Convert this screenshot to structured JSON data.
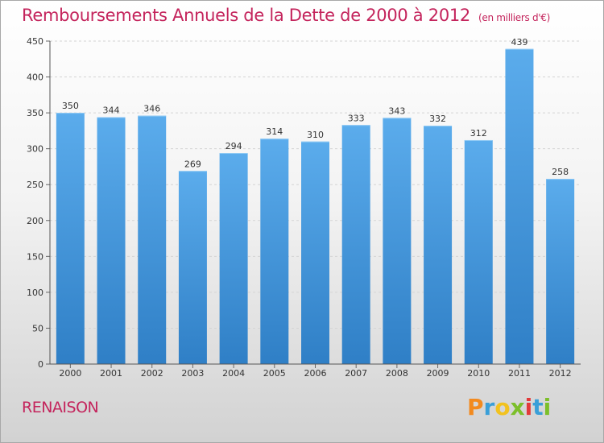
{
  "chart_data": {
    "type": "bar",
    "title": "Remboursements Annuels de la Dette de 2000 à 2012",
    "unit_note": "(en milliers d'€)",
    "categories": [
      "2000",
      "2001",
      "2002",
      "2003",
      "2004",
      "2005",
      "2006",
      "2007",
      "2008",
      "2009",
      "2010",
      "2011",
      "2012"
    ],
    "values": [
      350,
      344,
      346,
      269,
      294,
      314,
      310,
      333,
      343,
      332,
      312,
      439,
      258
    ],
    "ylim": [
      0,
      450
    ],
    "yticks": [
      0,
      50,
      100,
      150,
      200,
      250,
      300,
      350,
      400,
      450
    ],
    "xlabel": "",
    "ylabel": "",
    "grid": true,
    "bar_color": "#3d8fd6",
    "title_color": "#c4245c"
  },
  "place_name": "RENAISON",
  "logo": {
    "letters": [
      "P",
      "r",
      "o",
      "x",
      "i",
      "t",
      "i"
    ],
    "colors": [
      "#f28a1f",
      "#3a9fd8",
      "#f2c21f",
      "#7cbf2a",
      "#e23a3a",
      "#3a9fd8",
      "#7cbf2a"
    ]
  }
}
